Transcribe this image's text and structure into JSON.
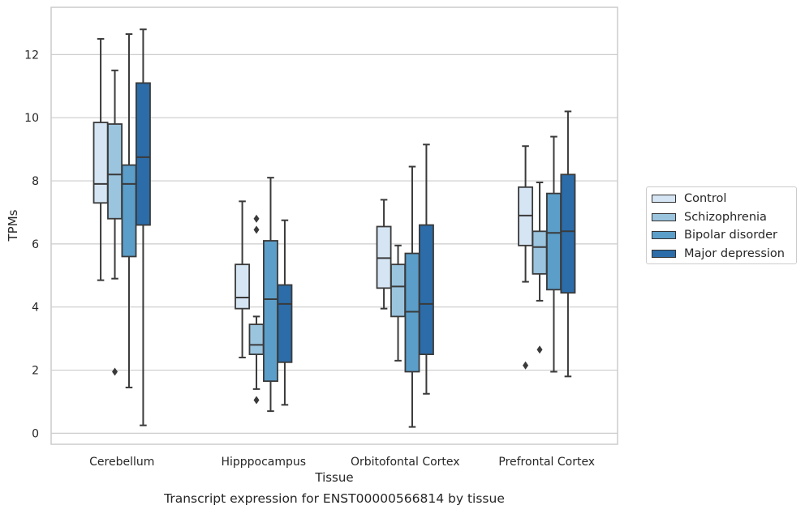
{
  "chart_data": {
    "type": "box",
    "title": "",
    "caption": "Transcript expression for ENST00000566814 by tissue",
    "xlabel": "Tissue",
    "ylabel": "TPMs",
    "ylim": [
      -0.35,
      13.5
    ],
    "yticks": [
      0,
      2,
      4,
      6,
      8,
      10,
      12
    ],
    "grid": "horizontal",
    "legend_position": "right",
    "categories": [
      "Cerebellum",
      "Hipppocampus",
      "Orbitofontal Cortex",
      "Prefrontal Cortex"
    ],
    "series": [
      {
        "name": "Control",
        "color": "#d6e5f3",
        "boxes": [
          {
            "whislo": 4.85,
            "q1": 7.3,
            "med": 7.9,
            "q3": 9.85,
            "whishi": 12.5,
            "fliers": []
          },
          {
            "whislo": 2.4,
            "q1": 3.95,
            "med": 4.3,
            "q3": 5.35,
            "whishi": 7.35,
            "fliers": []
          },
          {
            "whislo": 3.95,
            "q1": 4.6,
            "med": 5.55,
            "q3": 6.55,
            "whishi": 7.4,
            "fliers": []
          },
          {
            "whislo": 4.8,
            "q1": 5.95,
            "med": 6.9,
            "q3": 7.8,
            "whishi": 9.1,
            "fliers": [
              2.15
            ]
          }
        ]
      },
      {
        "name": "Schizophrenia",
        "color": "#9bc4de",
        "boxes": [
          {
            "whislo": 4.9,
            "q1": 6.8,
            "med": 8.2,
            "q3": 9.8,
            "whishi": 11.5,
            "fliers": [
              1.95
            ]
          },
          {
            "whislo": 1.4,
            "q1": 2.5,
            "med": 2.8,
            "q3": 3.45,
            "whishi": 3.7,
            "fliers": [
              6.8,
              6.45,
              1.05
            ]
          },
          {
            "whislo": 2.3,
            "q1": 3.7,
            "med": 4.65,
            "q3": 5.35,
            "whishi": 5.95,
            "fliers": []
          },
          {
            "whislo": 4.2,
            "q1": 5.05,
            "med": 5.9,
            "q3": 6.4,
            "whishi": 7.95,
            "fliers": [
              2.65
            ]
          }
        ]
      },
      {
        "name": "Bipolar disorder",
        "color": "#5b9ec9",
        "boxes": [
          {
            "whislo": 1.45,
            "q1": 5.6,
            "med": 7.9,
            "q3": 8.5,
            "whishi": 12.65,
            "fliers": []
          },
          {
            "whislo": 0.7,
            "q1": 1.65,
            "med": 4.25,
            "q3": 6.1,
            "whishi": 8.1,
            "fliers": []
          },
          {
            "whislo": 0.2,
            "q1": 1.95,
            "med": 3.85,
            "q3": 5.7,
            "whishi": 8.45,
            "fliers": []
          },
          {
            "whislo": 1.95,
            "q1": 4.55,
            "med": 6.35,
            "q3": 7.6,
            "whishi": 9.4,
            "fliers": []
          }
        ]
      },
      {
        "name": "Major depression",
        "color": "#2b6ca9",
        "boxes": [
          {
            "whislo": 0.25,
            "q1": 6.6,
            "med": 8.75,
            "q3": 11.1,
            "whishi": 12.8,
            "fliers": []
          },
          {
            "whislo": 0.9,
            "q1": 2.25,
            "med": 4.1,
            "q3": 4.7,
            "whishi": 6.75,
            "fliers": []
          },
          {
            "whislo": 1.25,
            "q1": 2.5,
            "med": 4.1,
            "q3": 6.6,
            "whishi": 9.15,
            "fliers": []
          },
          {
            "whislo": 1.8,
            "q1": 4.45,
            "med": 6.4,
            "q3": 8.2,
            "whishi": 10.2,
            "fliers": []
          }
        ]
      }
    ]
  }
}
